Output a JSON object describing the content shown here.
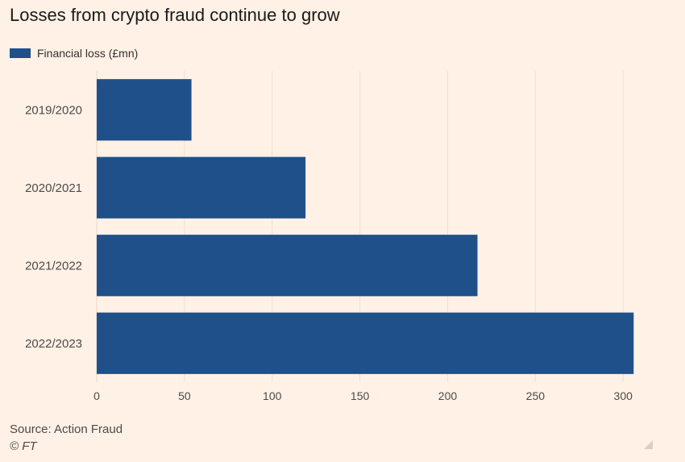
{
  "title": "Losses from crypto fraud continue to grow",
  "legend": {
    "label": "Financial loss (£mn)",
    "color": "#1f5089"
  },
  "source": "Source: Action Fraud",
  "copyright": "© FT",
  "chart_data": {
    "type": "bar",
    "orientation": "horizontal",
    "categories": [
      "2019/2020",
      "2020/2021",
      "2021/2022",
      "2022/2023"
    ],
    "series": [
      {
        "name": "Financial loss (£mn)",
        "values": [
          54,
          119,
          217,
          306
        ],
        "color": "#1f5089"
      }
    ],
    "xlim": [
      0,
      310
    ],
    "xticks": [
      0,
      50,
      100,
      150,
      200,
      250,
      300
    ],
    "grid": "vertical",
    "legend_position": "top-left"
  }
}
